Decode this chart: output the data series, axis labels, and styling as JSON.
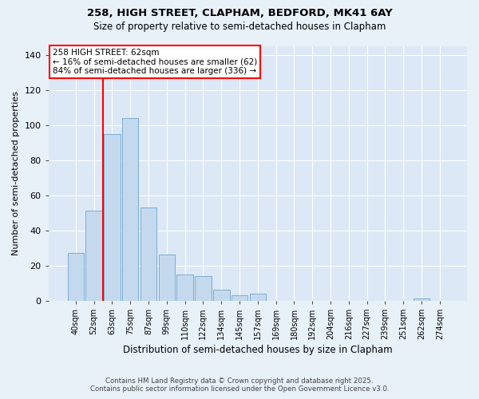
{
  "title1": "258, HIGH STREET, CLAPHAM, BEDFORD, MK41 6AY",
  "title2": "Size of property relative to semi-detached houses in Clapham",
  "xlabel": "Distribution of semi-detached houses by size in Clapham",
  "ylabel": "Number of semi-detached properties",
  "bar_labels": [
    "40sqm",
    "52sqm",
    "63sqm",
    "75sqm",
    "87sqm",
    "99sqm",
    "110sqm",
    "122sqm",
    "134sqm",
    "145sqm",
    "157sqm",
    "169sqm",
    "180sqm",
    "192sqm",
    "204sqm",
    "216sqm",
    "227sqm",
    "239sqm",
    "251sqm",
    "262sqm",
    "274sqm"
  ],
  "bar_values": [
    27,
    51,
    95,
    104,
    53,
    26,
    15,
    14,
    6,
    3,
    4,
    0,
    0,
    0,
    0,
    0,
    0,
    0,
    0,
    1,
    0
  ],
  "bar_color": "#c5d9ee",
  "bar_edgecolor": "#7aadd4",
  "vline_color": "red",
  "annotation_title": "258 HIGH STREET: 62sqm",
  "annotation_line1": "← 16% of semi-detached houses are smaller (62)",
  "annotation_line2": "84% of semi-detached houses are larger (336) →",
  "annotation_box_color": "white",
  "annotation_box_edgecolor": "red",
  "ylim": [
    0,
    145
  ],
  "yticks": [
    0,
    20,
    40,
    60,
    80,
    100,
    120,
    140
  ],
  "footer1": "Contains HM Land Registry data © Crown copyright and database right 2025.",
  "footer2": "Contains public sector information licensed under the Open Government Licence v3.0.",
  "bg_color": "#e8f0f8",
  "plot_bg_color": "#dce8f5"
}
